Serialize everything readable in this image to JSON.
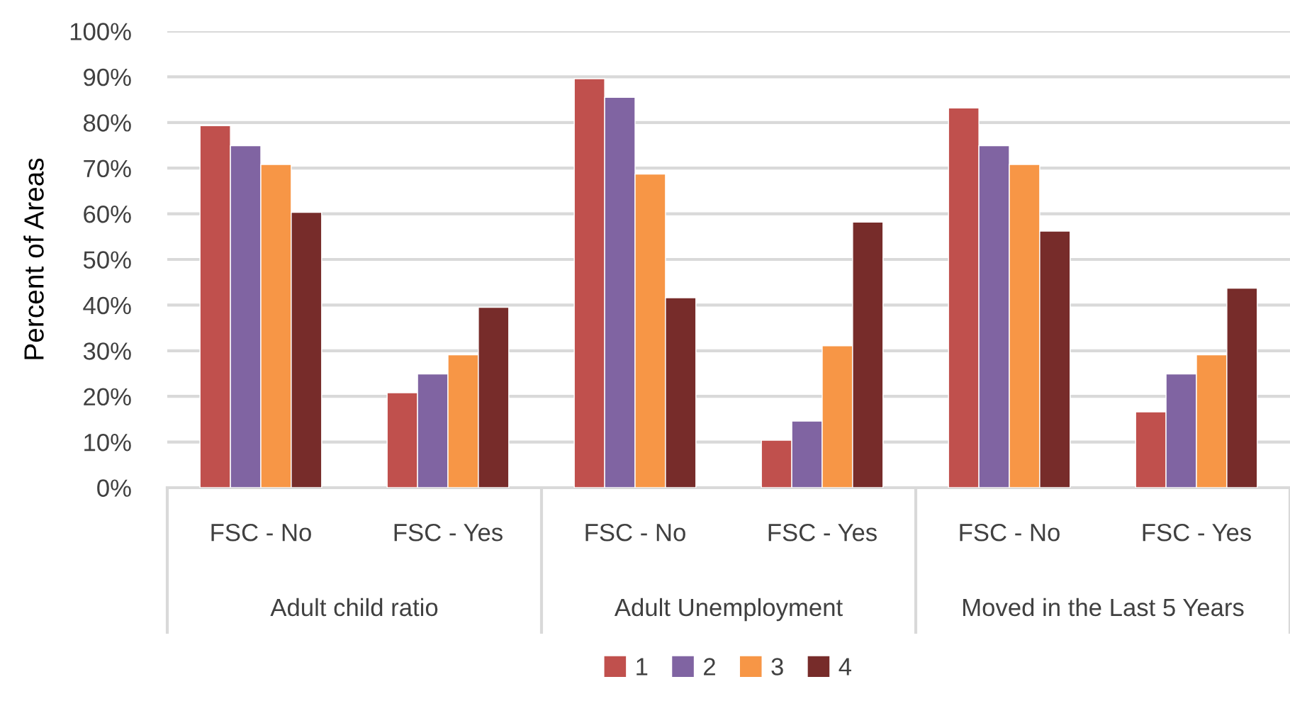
{
  "chart_data": {
    "type": "bar",
    "ylabel": "Percent of Areas",
    "categories": [
      "FSC - No",
      "FSC - Yes",
      "FSC - No",
      "FSC - Yes",
      "FSC - No",
      "FSC - Yes"
    ],
    "annotations": [
      "Adult child ratio",
      "Adult Unemployment",
      "Moved in the Last 5 Years"
    ],
    "series": [
      {
        "name": "1",
        "color": "#c0504d",
        "values": [
          79.3,
          20.8,
          89.6,
          10.4,
          83.2,
          16.6
        ]
      },
      {
        "name": "2",
        "color": "#8064a2",
        "values": [
          74.9,
          24.9,
          85.5,
          14.6,
          74.9,
          24.9
        ]
      },
      {
        "name": "3",
        "color": "#f79646",
        "values": [
          70.8,
          29.1,
          68.7,
          31.1,
          70.8,
          29.1
        ]
      },
      {
        "name": "4",
        "color": "#772c2a",
        "values": [
          60.3,
          39.5,
          41.6,
          58.2,
          56.2,
          43.7
        ]
      }
    ],
    "ylim": [
      0,
      100
    ],
    "yticks": [
      {
        "value": 0,
        "label": "0%"
      },
      {
        "value": 10,
        "label": "10%"
      },
      {
        "value": 20,
        "label": "20%"
      },
      {
        "value": 30,
        "label": "30%"
      },
      {
        "value": 40,
        "label": "40%"
      },
      {
        "value": 50,
        "label": "50%"
      },
      {
        "value": 60,
        "label": "60%"
      },
      {
        "value": 70,
        "label": "70%"
      },
      {
        "value": 80,
        "label": "80%"
      },
      {
        "value": 90,
        "label": "90%"
      },
      {
        "value": 100,
        "label": "100%"
      }
    ],
    "grid": "y",
    "legend": "bottom"
  }
}
